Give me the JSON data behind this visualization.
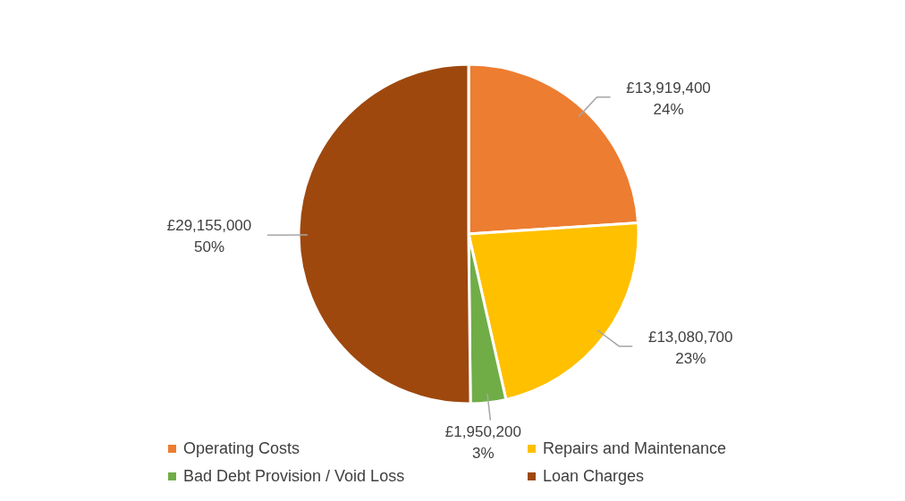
{
  "chart_data": {
    "type": "pie",
    "categories": [
      "Operating Costs",
      "Repairs and Maintenance",
      "Bad Debt Provision / Void Loss",
      "Loan Charges"
    ],
    "values": [
      13919400,
      13080700,
      1950200,
      29155000
    ],
    "colors": [
      "#ed7d31",
      "#ffc000",
      "#70ad47",
      "#9e480e"
    ],
    "value_labels": [
      "£13,919,400\n24%",
      "£13,080,700\n23%",
      "£1,950,200\n3%",
      "£29,155,000\n50%"
    ],
    "legend": "bottom"
  }
}
